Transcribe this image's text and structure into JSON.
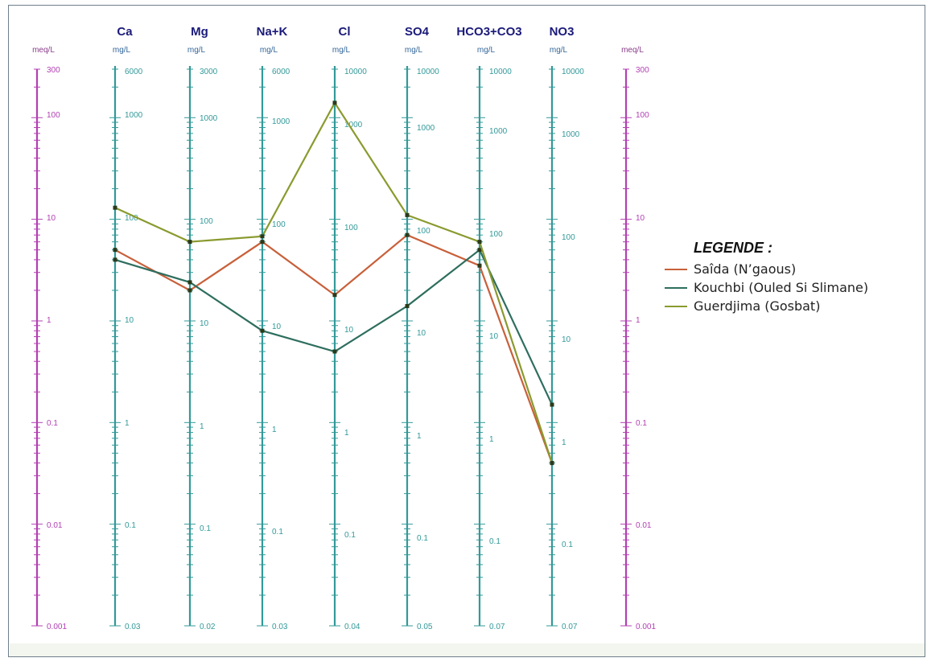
{
  "chart_data": {
    "type": "line",
    "title": "",
    "columns": [
      {
        "name": "",
        "unit": "meq/L",
        "ticks": [
          "300",
          "100",
          "10",
          "1",
          "0.1",
          "0.01",
          "0.001"
        ],
        "color": "#b340b3"
      },
      {
        "name": "Ca",
        "unit": "mg/L",
        "ticks": [
          "6000",
          "1000",
          "100",
          "10",
          "1",
          "0.1",
          "0.03"
        ],
        "color": "#339999"
      },
      {
        "name": "Mg",
        "unit": "mg/L",
        "ticks": [
          "3000",
          "1000",
          "100",
          "10",
          "1",
          "0.1",
          "0.02"
        ],
        "color": "#339999"
      },
      {
        "name": "Na+K",
        "unit": "mg/L",
        "ticks": [
          "6000",
          "1000",
          "100",
          "10",
          "1",
          "0.1",
          "0.03"
        ],
        "color": "#339999"
      },
      {
        "name": "Cl",
        "unit": "mg/L",
        "ticks": [
          "10000",
          "1000",
          "100",
          "10",
          "1",
          "0.1",
          "0.04"
        ],
        "color": "#339999"
      },
      {
        "name": "SO4",
        "unit": "mg/L",
        "ticks": [
          "10000",
          "1000",
          "100",
          "10",
          "1",
          "0.1",
          "0.05"
        ],
        "color": "#339999"
      },
      {
        "name": "HCO3+CO3",
        "unit": "mg/L",
        "ticks": [
          "10000",
          "1000",
          "100",
          "10",
          "1",
          "0.1",
          "0.07"
        ],
        "color": "#339999"
      },
      {
        "name": "NO3",
        "unit": "mg/L",
        "ticks": [
          "10000",
          "1000",
          "100",
          "10",
          "1",
          "0.1",
          "0.07"
        ],
        "color": "#339999"
      },
      {
        "name": "",
        "unit": "meq/L",
        "ticks": [
          "300",
          "100",
          "10",
          "1",
          "0.1",
          "0.01",
          "0.001"
        ],
        "color": "#b340b3"
      }
    ],
    "parameters": [
      "Ca",
      "Mg",
      "Na+K",
      "Cl",
      "SO4",
      "HCO3+CO3",
      "NO3"
    ],
    "y_unit": "meq/L",
    "ylim": [
      0.001,
      300
    ],
    "y_scale": "log",
    "series": [
      {
        "name": "Saîda (N'gaous)",
        "color": "#c8603a",
        "values": [
          5.0,
          2.0,
          6.0,
          1.8,
          7.0,
          3.5,
          0.04
        ]
      },
      {
        "name": "Kouchbi (Ouled Si Slimane)",
        "color": "#2e6e5e",
        "values": [
          4.0,
          2.4,
          0.8,
          0.5,
          1.4,
          5.0,
          0.15
        ]
      },
      {
        "name": "Guerdjima (Gosbat)",
        "color": "#8a9a2e",
        "values": [
          13.0,
          6.0,
          6.8,
          140.0,
          11.0,
          6.0,
          0.04
        ]
      }
    ]
  },
  "legend": {
    "title": "LEGENDE :",
    "items": [
      {
        "label": "Saîda (N’gaous)",
        "color": "#c8603a"
      },
      {
        "label": "Kouchbi (Ouled Si Slimane)",
        "color": "#2e6e5e"
      },
      {
        "label": "Guerdjima (Gosbat)",
        "color": "#8a9a2e"
      }
    ]
  }
}
